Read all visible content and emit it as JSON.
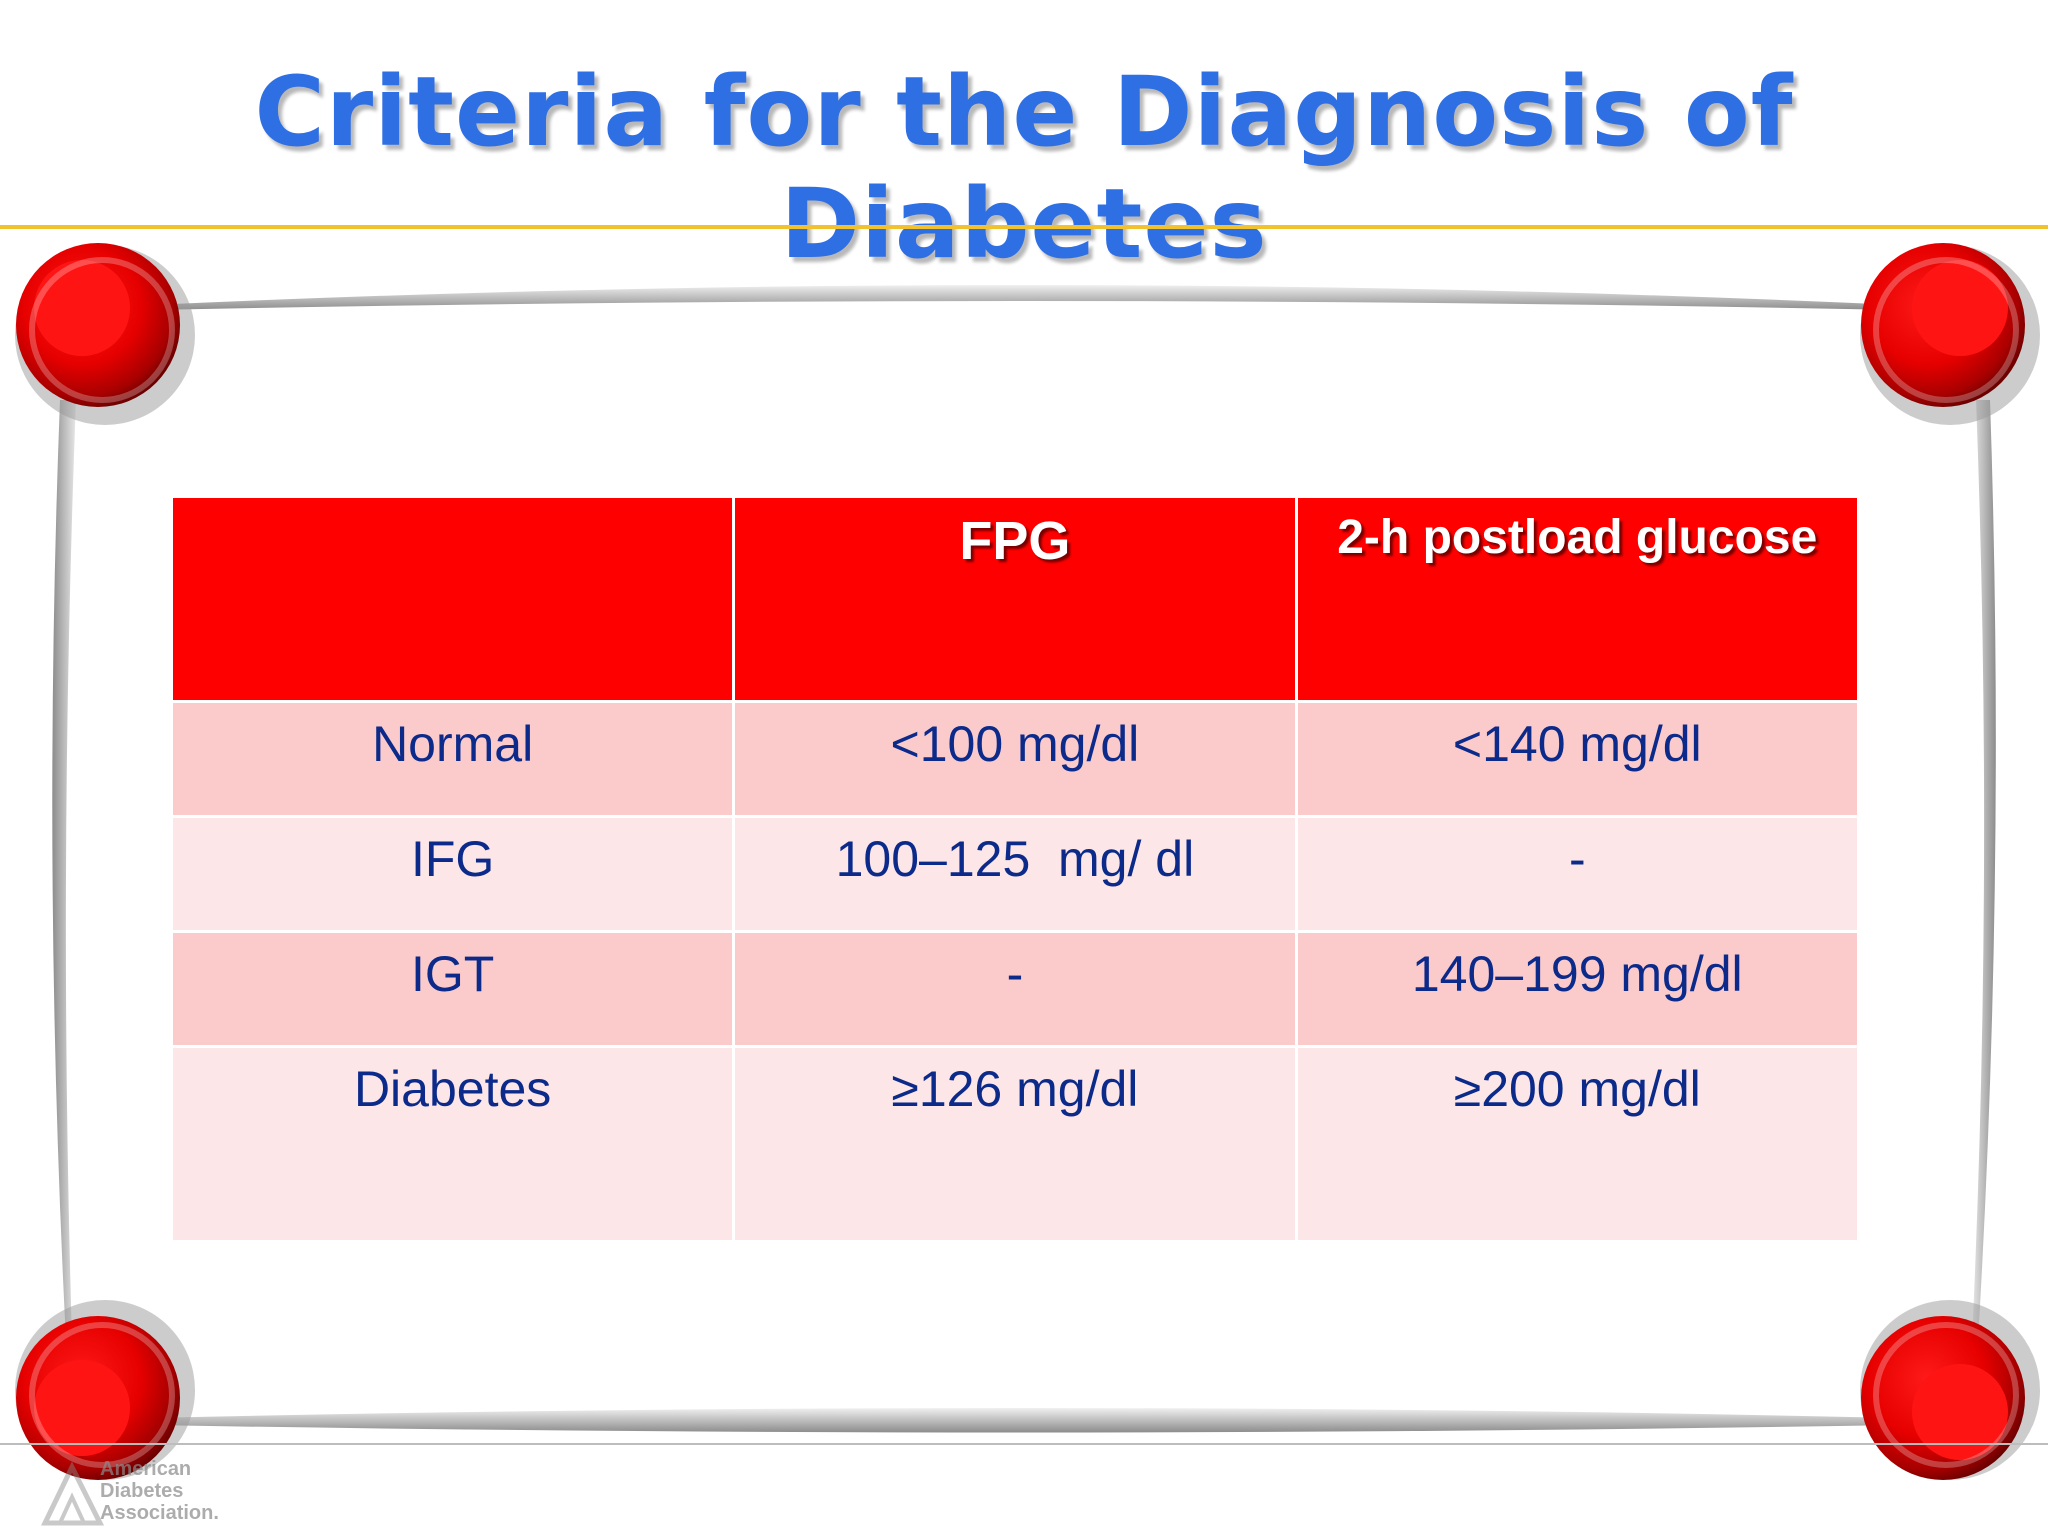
{
  "slide": {
    "title": "Criteria for the Diagnosis of Diabetes"
  },
  "colors": {
    "title": "#2f6fe4",
    "rule": "#f2c12e",
    "header_bg": "#fe0000",
    "row_dark": "#fbcacb",
    "row_light": "#fce6e7",
    "cell_text": "#0b2a8a"
  },
  "table": {
    "headers": [
      "",
      "FPG",
      "2-h postload glucose"
    ],
    "rows": [
      {
        "label": "Normal",
        "fpg": "<100 mg/dl",
        "postload": "<140 mg/dl"
      },
      {
        "label": "IFG",
        "fpg": "100–125  mg/ dl",
        "postload": "-"
      },
      {
        "label": "IGT",
        "fpg": "-",
        "postload": "140–199 mg/dl"
      },
      {
        "label": "Diabetes",
        "fpg": "≥126 mg/dl",
        "postload": "≥200 mg/dl"
      }
    ]
  },
  "logo": {
    "line1": "American",
    "line2": "Diabetes",
    "line3": "Association."
  }
}
